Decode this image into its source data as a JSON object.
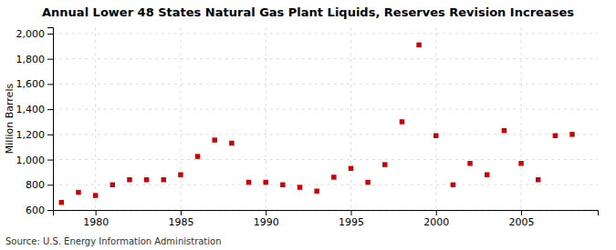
{
  "chart_data": {
    "type": "scatter",
    "title": "Annual Lower 48 States Natural Gas Plant Liquids, Reserves Revision Increases",
    "y_label": "Million Barrels",
    "annotations": [
      "Source: U.S. Energy Information Administration"
    ],
    "x": [
      1978,
      1979,
      1980,
      1981,
      1982,
      1983,
      1984,
      1985,
      1986,
      1987,
      1988,
      1989,
      1990,
      1991,
      1992,
      1993,
      1994,
      1995,
      1996,
      1997,
      1998,
      1999,
      2000,
      2001,
      2002,
      2003,
      2004,
      2005,
      2006,
      2007,
      2008
    ],
    "values": [
      660,
      740,
      715,
      800,
      840,
      840,
      840,
      880,
      1025,
      1155,
      1130,
      820,
      820,
      800,
      780,
      750,
      860,
      930,
      820,
      960,
      1300,
      1910,
      1190,
      800,
      970,
      880,
      1230,
      970,
      840,
      1190,
      1200
    ],
    "color": "#cc0000",
    "marker": "square",
    "xlim": [
      1977.5,
      2009.5
    ],
    "xticks": [
      1980,
      1985,
      1990,
      1995,
      2000,
      2005
    ],
    "ylim": [
      600,
      2050
    ],
    "yticks": [
      600,
      800,
      {
        "value": 1000,
        "label": "1,000"
      },
      {
        "value": 1200,
        "label": "1,200"
      },
      {
        "value": 1400,
        "label": "1,400"
      },
      {
        "value": 1600,
        "label": "1,600"
      },
      {
        "value": 1800,
        "label": "1,800"
      },
      {
        "value": 2000,
        "label": "2,000"
      }
    ],
    "grid": true
  }
}
